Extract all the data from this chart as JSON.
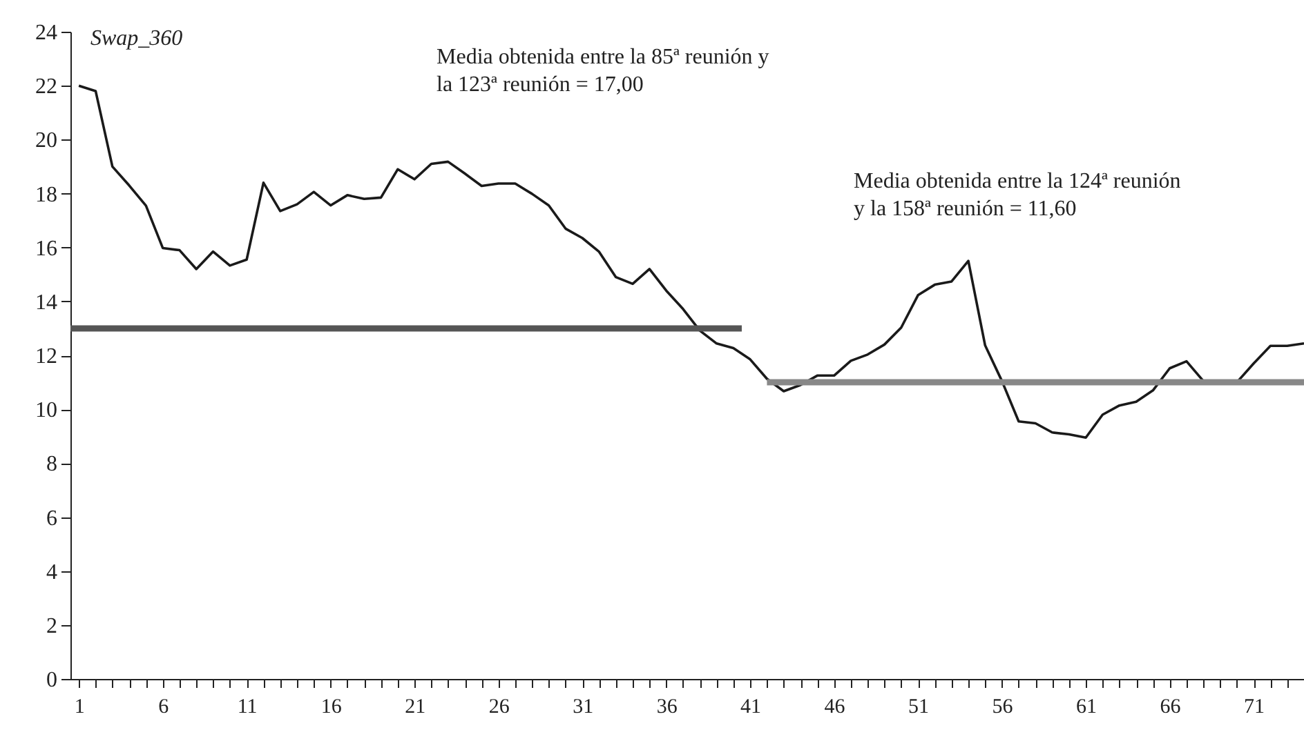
{
  "chart_data": {
    "type": "line",
    "ylabel": "Swap_360",
    "annotations": [
      "Media obtenida entre la 85ª reunión y\nla 123ª reunión = 17,00",
      "Media obtenida entre la 124ª reunión\ny la 158ª reunión = 11,60"
    ],
    "x": [
      1,
      2,
      3,
      4,
      5,
      6,
      7,
      8,
      9,
      10,
      11,
      12,
      13,
      14,
      15,
      16,
      17,
      18,
      19,
      20,
      21,
      22,
      23,
      24,
      25,
      26,
      27,
      28,
      29,
      30,
      31,
      32,
      33,
      34,
      35,
      36,
      37,
      38,
      39,
      40,
      41,
      42,
      43,
      44,
      45,
      46,
      47,
      48,
      49,
      50,
      51,
      52,
      53,
      54,
      55,
      56,
      57,
      58,
      59,
      60,
      61,
      62,
      63,
      64,
      65,
      66,
      67,
      68,
      69,
      70,
      71,
      72,
      73,
      74
    ],
    "series": [
      {
        "color": "#1a1a1a",
        "values": [
          22.0,
          21.8,
          19.0,
          18.3,
          17.55,
          15.98,
          15.9,
          15.2,
          15.85,
          15.33,
          15.55,
          18.4,
          17.35,
          17.6,
          18.06,
          17.56,
          17.94,
          17.8,
          17.85,
          18.9,
          18.53,
          19.1,
          19.18,
          18.74,
          18.28,
          18.37,
          18.37,
          17.99,
          17.56,
          16.7,
          16.35,
          15.84,
          14.9,
          14.65,
          15.2,
          14.4,
          13.72,
          12.92,
          12.44,
          12.27,
          11.85,
          11.13,
          10.67,
          10.9,
          11.25,
          11.25,
          11.8,
          12.03,
          12.4,
          13.03,
          14.23,
          14.62,
          14.74,
          15.5,
          12.37,
          11.05,
          9.55,
          9.48,
          9.14,
          9.07,
          8.95,
          9.8,
          10.14,
          10.28,
          10.7,
          11.52,
          11.78,
          11.05,
          11.0,
          11.0,
          11.7,
          12.35,
          12.35,
          12.44
        ]
      },
      {
        "type": "line",
        "color": "#555555",
        "x": [
          0.5,
          40.5
        ],
        "values": [
          13,
          13
        ]
      },
      {
        "type": "line",
        "color": "#888888",
        "x": [
          42,
          74
        ],
        "values": [
          11,
          11
        ]
      }
    ],
    "xlim": [
      0.5,
      74
    ],
    "xticks": [
      1,
      {
        "value": 2,
        "label": null
      },
      {
        "value": 3,
        "label": null
      },
      {
        "value": 4,
        "label": null
      },
      {
        "value": 5,
        "label": null
      },
      6,
      {
        "value": 7,
        "label": null
      },
      {
        "value": 8,
        "label": null
      },
      {
        "value": 9,
        "label": null
      },
      {
        "value": 10,
        "label": null
      },
      11,
      {
        "value": 12,
        "label": null
      },
      {
        "value": 13,
        "label": null
      },
      {
        "value": 14,
        "label": null
      },
      {
        "value": 15,
        "label": null
      },
      16,
      {
        "value": 17,
        "label": null
      },
      {
        "value": 18,
        "label": null
      },
      {
        "value": 19,
        "label": null
      },
      {
        "value": 20,
        "label": null
      },
      21,
      {
        "value": 22,
        "label": null
      },
      {
        "value": 23,
        "label": null
      },
      {
        "value": 24,
        "label": null
      },
      {
        "value": 25,
        "label": null
      },
      26,
      {
        "value": 27,
        "label": null
      },
      {
        "value": 28,
        "label": null
      },
      {
        "value": 29,
        "label": null
      },
      {
        "value": 30,
        "label": null
      },
      31,
      {
        "value": 32,
        "label": null
      },
      {
        "value": 33,
        "label": null
      },
      {
        "value": 34,
        "label": null
      },
      {
        "value": 35,
        "label": null
      },
      36,
      {
        "value": 37,
        "label": null
      },
      {
        "value": 38,
        "label": null
      },
      {
        "value": 39,
        "label": null
      },
      {
        "value": 40,
        "label": null
      },
      41,
      {
        "value": 42,
        "label": null
      },
      {
        "value": 43,
        "label": null
      },
      {
        "value": 44,
        "label": null
      },
      {
        "value": 45,
        "label": null
      },
      46,
      {
        "value": 47,
        "label": null
      },
      {
        "value": 48,
        "label": null
      },
      {
        "value": 49,
        "label": null
      },
      {
        "value": 50,
        "label": null
      },
      51,
      {
        "value": 52,
        "label": null
      },
      {
        "value": 53,
        "label": null
      },
      {
        "value": 54,
        "label": null
      },
      {
        "value": 55,
        "label": null
      },
      56,
      {
        "value": 57,
        "label": null
      },
      {
        "value": 58,
        "label": null
      },
      {
        "value": 59,
        "label": null
      },
      {
        "value": 60,
        "label": null
      },
      61,
      {
        "value": 62,
        "label": null
      },
      {
        "value": 63,
        "label": null
      },
      {
        "value": 64,
        "label": null
      },
      {
        "value": 65,
        "label": null
      },
      66,
      {
        "value": 67,
        "label": null
      },
      {
        "value": 68,
        "label": null
      },
      {
        "value": 69,
        "label": null
      },
      {
        "value": 70,
        "label": null
      },
      71,
      {
        "value": 72,
        "label": null
      },
      {
        "value": 73,
        "label": null
      },
      {
        "value": 74,
        "label": null
      }
    ],
    "ylim": [
      0,
      24
    ],
    "yticks": [
      0,
      2,
      4,
      6,
      8,
      10,
      12,
      14,
      16,
      18,
      20,
      22,
      24
    ],
    "grid": false,
    "line_style": "solid"
  }
}
